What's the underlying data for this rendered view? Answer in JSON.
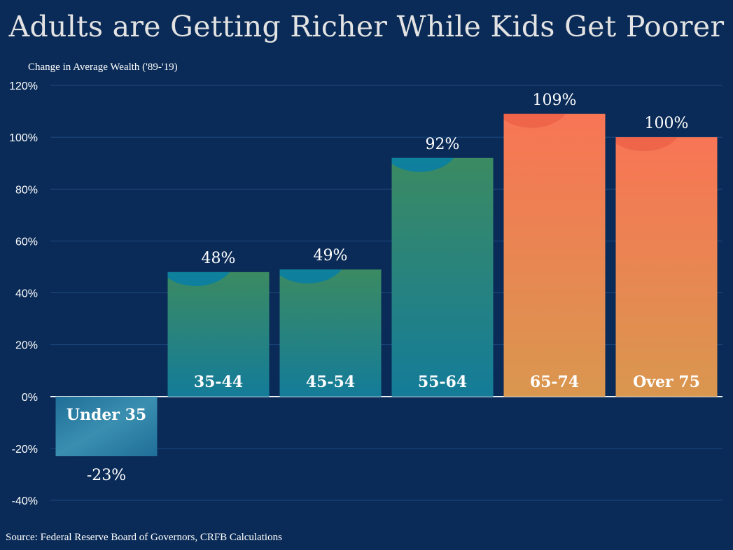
{
  "title": "Adults are Getting Richer While Kids Get Poorer",
  "subtitle": "Change in Average Wealth ('89-'19)",
  "source": "Source: Federal Reserve Board of Governors, CRFB Calculations",
  "colors": {
    "background": "#0a2b57",
    "gridline": "#1d4a80",
    "young_bar_top": "#3b8a62",
    "young_bar_bottom": "#147c99",
    "old_bar_top": "#f87555",
    "old_bar_bottom": "#d9974f"
  },
  "chart_data": {
    "type": "bar",
    "title": "Adults are Getting Richer While Kids Get Poorer",
    "ylabel": "Change in Average Wealth ('89-'19)",
    "xlabel": "",
    "categories": [
      "Under 35",
      "35-44",
      "45-54",
      "55-64",
      "65-74",
      "Over 75"
    ],
    "values": [
      -23,
      48,
      49,
      92,
      109,
      100
    ],
    "value_labels": [
      "-23%",
      "48%",
      "49%",
      "92%",
      "109%",
      "100%"
    ],
    "bar_groups": [
      "young",
      "young",
      "young",
      "young",
      "old",
      "old"
    ],
    "ylim": [
      -40,
      120
    ],
    "yticks": [
      120,
      100,
      80,
      60,
      40,
      20,
      0,
      -20,
      -40
    ],
    "ytick_labels": [
      "120%",
      "100%",
      "80%",
      "60%",
      "40%",
      "20%",
      "0%",
      "-20%",
      "-40%"
    ],
    "grid": true,
    "legend": "none"
  }
}
